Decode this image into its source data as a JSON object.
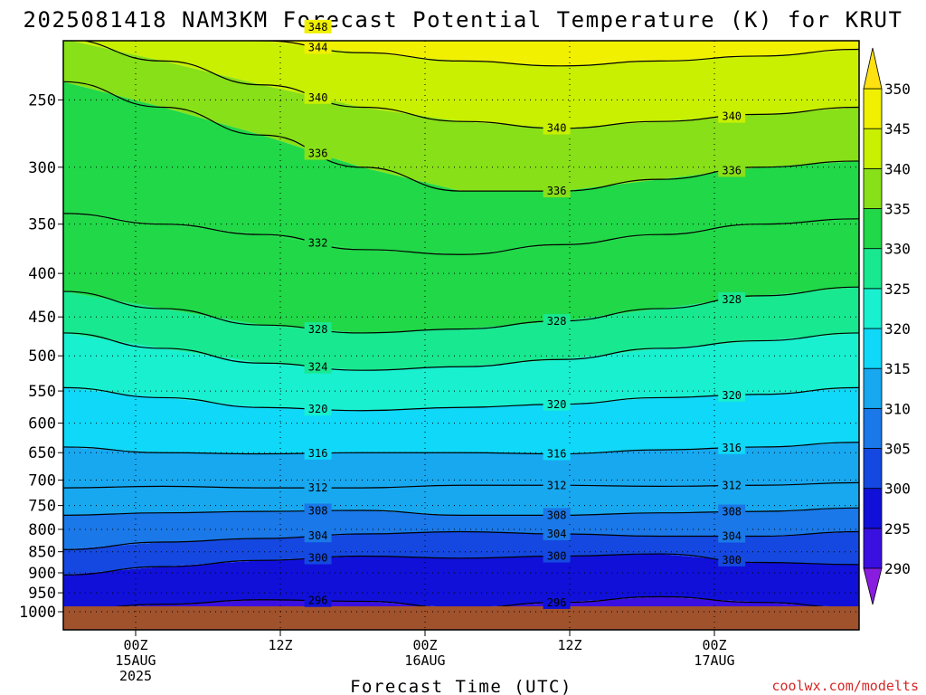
{
  "chart_data": {
    "type": "heatmap",
    "title": "2025081418 NAM3KM Forecast Potential Temperature (K) for KRUT",
    "xlabel": "Forecast Time (UTC)",
    "ylabel": "",
    "x_ticks": [
      {
        "value": "2025-08-15T00Z",
        "label": "00Z",
        "sub1": "15AUG",
        "sub2": "2025"
      },
      {
        "value": "2025-08-15T12Z",
        "label": "12Z",
        "sub1": "",
        "sub2": ""
      },
      {
        "value": "2025-08-16T00Z",
        "label": "00Z",
        "sub1": "16AUG",
        "sub2": ""
      },
      {
        "value": "2025-08-16T12Z",
        "label": "12Z",
        "sub1": "",
        "sub2": ""
      },
      {
        "value": "2025-08-17T00Z",
        "label": "00Z",
        "sub1": "17AUG",
        "sub2": ""
      }
    ],
    "xlim": [
      "2025-08-14T18Z",
      "2025-08-17T12Z"
    ],
    "y_ticks": [
      250,
      300,
      350,
      400,
      450,
      500,
      550,
      600,
      650,
      700,
      750,
      800,
      850,
      900,
      950,
      1000
    ],
    "ylim": [
      1000,
      200
    ],
    "y_scale": "log-pressure",
    "grid": true,
    "colorbar": {
      "levels": [
        290,
        295,
        300,
        305,
        310,
        315,
        320,
        325,
        330,
        335,
        340,
        345,
        350
      ],
      "colors": [
        "#8a1ce0",
        "#3a10e0",
        "#1010d8",
        "#1448e0",
        "#1a78e8",
        "#18a8f0",
        "#10d8f8",
        "#18f0d0",
        "#18e890",
        "#20d848",
        "#88e018",
        "#c8f000",
        "#f0f000",
        "#ffe010"
      ],
      "extend": "both"
    },
    "ground_color": "#a0522d",
    "contour_labels": [
      "340",
      "348",
      "344",
      "336",
      "340",
      "340",
      "336",
      "336",
      "332",
      "328",
      "328",
      "328",
      "324",
      "320",
      "320",
      "320",
      "316",
      "316",
      "316",
      "312",
      "312",
      "312",
      "308",
      "308",
      "308",
      "304",
      "304",
      "304",
      "300",
      "300",
      "300",
      "296",
      "296"
    ],
    "isotherm_approx": [
      {
        "value": 296,
        "pressure": [
          995,
          980,
          968,
          972,
          990,
          975,
          960,
          975,
          990
        ]
      },
      {
        "value": 300,
        "pressure": [
          905,
          885,
          870,
          860,
          865,
          860,
          855,
          875,
          880
        ]
      },
      {
        "value": 304,
        "pressure": [
          845,
          828,
          820,
          810,
          805,
          810,
          815,
          815,
          805
        ]
      },
      {
        "value": 308,
        "pressure": [
          770,
          765,
          762,
          760,
          770,
          770,
          765,
          762,
          755
        ]
      },
      {
        "value": 312,
        "pressure": [
          715,
          712,
          715,
          715,
          710,
          710,
          712,
          710,
          705
        ]
      },
      {
        "value": 316,
        "pressure": [
          640,
          650,
          652,
          650,
          650,
          652,
          645,
          640,
          632
        ]
      },
      {
        "value": 320,
        "pressure": [
          545,
          560,
          575,
          580,
          575,
          570,
          560,
          555,
          545
        ]
      },
      {
        "value": 324,
        "pressure": [
          470,
          490,
          510,
          520,
          515,
          505,
          490,
          480,
          470
        ]
      },
      {
        "value": 328,
        "pressure": [
          420,
          440,
          460,
          470,
          465,
          455,
          440,
          425,
          415
        ]
      },
      {
        "value": 332,
        "pressure": [
          340,
          350,
          360,
          375,
          380,
          370,
          360,
          350,
          345
        ]
      },
      {
        "value": 336,
        "pressure": [
          238,
          255,
          275,
          300,
          320,
          320,
          310,
          300,
          295
        ]
      },
      {
        "value": 340,
        "pressure": [
          212,
          225,
          240,
          255,
          265,
          270,
          265,
          260,
          255
        ]
      },
      {
        "value": 344,
        "pressure": [
          202,
          207,
          213,
          220,
          225,
          228,
          225,
          222,
          218
        ]
      },
      {
        "value": 348,
        "pressure": [
          200,
          200,
          203,
          207,
          210,
          210,
          208,
          205,
          203
        ]
      }
    ],
    "isotherm_x_fraction": [
      0,
      0.125,
      0.25,
      0.375,
      0.5,
      0.625,
      0.75,
      0.875,
      1.0
    ]
  },
  "credit": "coolwx.com/modelts"
}
